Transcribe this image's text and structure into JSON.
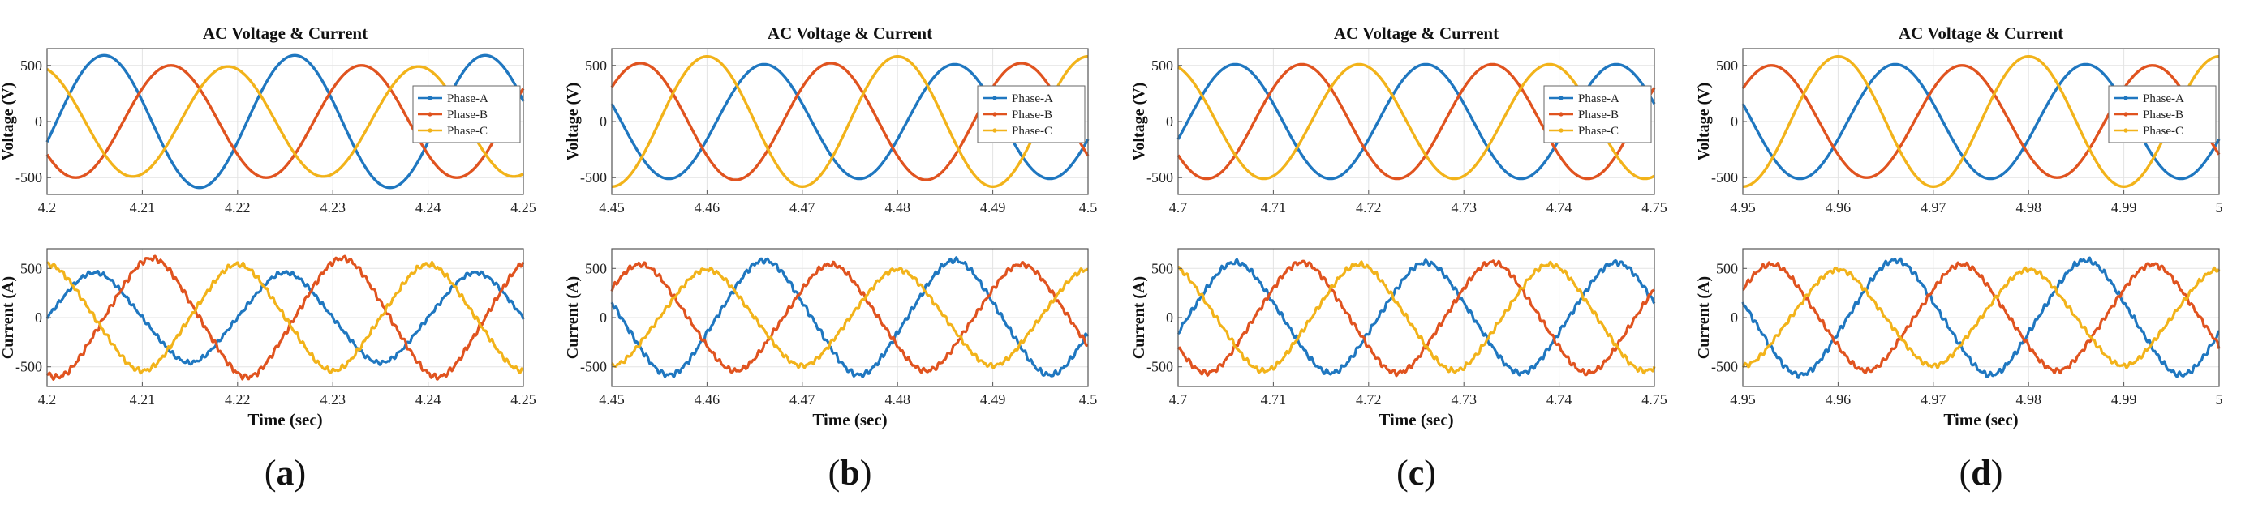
{
  "figure": {
    "subfigure_labels": [
      "a",
      "b",
      "c",
      "d"
    ]
  },
  "colors": {
    "phase_a": "#1f77c0",
    "phase_b": "#e0531f",
    "phase_c": "#f2b31a",
    "grid": "#e3e3e3",
    "axis": "#555555"
  },
  "chart_data": [
    {
      "type": "line",
      "title": "AC Voltage & Current",
      "ylabel": "Voltage (V)",
      "xlabel": "",
      "xlim": [
        4.2,
        4.25
      ],
      "ylim": [
        -650,
        650
      ],
      "xticks": [
        "4.2",
        "4.21",
        "4.22",
        "4.23",
        "4.24",
        "4.25"
      ],
      "yticks": [
        "500",
        "0",
        "-500"
      ],
      "series": [
        {
          "name": "Phase-A",
          "amplitude": 590,
          "peak_at": [
            4.206,
            4.226,
            4.246
          ],
          "trough_at": [
            4.216,
            4.236
          ]
        },
        {
          "name": "Phase-B",
          "amplitude": 500,
          "peak_at": [
            4.213,
            4.233
          ],
          "trough_at": [
            4.203,
            4.223,
            4.243
          ]
        },
        {
          "name": "Phase-C",
          "amplitude": 490,
          "peak_at": [
            4.219,
            4.239
          ],
          "trough_at": [
            4.209,
            4.229,
            4.249
          ]
        }
      ],
      "legend": [
        "Phase-A",
        "Phase-B",
        "Phase-C"
      ],
      "legend_position": "right"
    },
    {
      "type": "line",
      "title": "AC Voltage & Current",
      "ylabel": "Voltage (V)",
      "xlabel": "",
      "xlim": [
        4.45,
        4.5
      ],
      "ylim": [
        -650,
        650
      ],
      "xticks": [
        "4.45",
        "4.46",
        "4.47",
        "4.48",
        "4.49",
        "4.5"
      ],
      "yticks": [
        "500",
        "0",
        "-500"
      ],
      "series": [
        {
          "name": "Phase-A",
          "amplitude": 510,
          "peak_at": [
            4.466,
            4.486
          ],
          "trough_at": [
            4.456,
            4.476,
            4.496
          ]
        },
        {
          "name": "Phase-B",
          "amplitude": 520,
          "peak_at": [
            4.453,
            4.473,
            4.493
          ],
          "trough_at": [
            4.463,
            4.483
          ]
        },
        {
          "name": "Phase-C",
          "amplitude": 580,
          "peak_at": [
            4.46,
            4.48,
            4.5
          ],
          "trough_at": [
            4.45,
            4.47,
            4.49
          ]
        }
      ],
      "legend": [
        "Phase-A",
        "Phase-B",
        "Phase-C"
      ],
      "legend_position": "right"
    },
    {
      "type": "line",
      "title": "AC Voltage & Current",
      "ylabel": "Voltage (V)",
      "xlabel": "",
      "xlim": [
        4.7,
        4.75
      ],
      "ylim": [
        -650,
        650
      ],
      "xticks": [
        "4.7",
        "4.71",
        "4.72",
        "4.73",
        "4.74",
        "4.75"
      ],
      "yticks": [
        "500",
        "0",
        "-500"
      ],
      "series": [
        {
          "name": "Phase-A",
          "amplitude": 510,
          "peak_at": [
            4.706,
            4.726,
            4.746
          ],
          "trough_at": [
            4.716,
            4.736
          ]
        },
        {
          "name": "Phase-B",
          "amplitude": 510,
          "peak_at": [
            4.713,
            4.733
          ],
          "trough_at": [
            4.703,
            4.723,
            4.743
          ]
        },
        {
          "name": "Phase-C",
          "amplitude": 510,
          "peak_at": [
            4.719,
            4.739
          ],
          "trough_at": [
            4.709,
            4.729,
            4.749
          ]
        }
      ],
      "legend": [
        "Phase-A",
        "Phase-B",
        "Phase-C"
      ],
      "legend_position": "right"
    },
    {
      "type": "line",
      "title": "AC Voltage & Current",
      "ylabel": "Voltage (V)",
      "xlabel": "",
      "xlim": [
        4.95,
        5.0
      ],
      "ylim": [
        -650,
        650
      ],
      "xticks": [
        "4.95",
        "4.96",
        "4.97",
        "4.98",
        "4.99",
        "5"
      ],
      "yticks": [
        "500",
        "0",
        "-500"
      ],
      "series": [
        {
          "name": "Phase-A",
          "amplitude": 510,
          "peak_at": [
            4.966,
            4.986
          ],
          "trough_at": [
            4.956,
            4.976,
            4.996
          ]
        },
        {
          "name": "Phase-B",
          "amplitude": 500,
          "peak_at": [
            4.953,
            4.973,
            4.993
          ],
          "trough_at": [
            4.963,
            4.983
          ]
        },
        {
          "name": "Phase-C",
          "amplitude": 580,
          "peak_at": [
            4.96,
            4.98,
            5.0
          ],
          "trough_at": [
            4.95,
            4.97,
            4.99
          ]
        }
      ],
      "legend": [
        "Phase-A",
        "Phase-B",
        "Phase-C"
      ],
      "legend_position": "right"
    },
    {
      "type": "line",
      "title": "",
      "ylabel": "Current (A)",
      "xlabel": "Time (sec)",
      "xlim": [
        4.2,
        4.25
      ],
      "ylim": [
        -700,
        700
      ],
      "xticks": [
        "4.2",
        "4.21",
        "4.22",
        "4.23",
        "4.24",
        "4.25"
      ],
      "yticks": [
        "500",
        "0",
        "-500"
      ],
      "series": [
        {
          "name": "Phase-A",
          "amplitude": 440,
          "peak_at": [
            4.205,
            4.225,
            4.245
          ],
          "trough_at": [
            4.215,
            4.235
          ]
        },
        {
          "name": "Phase-B",
          "amplitude": 580,
          "peak_at": [
            4.211,
            4.231
          ],
          "trough_at": [
            4.202,
            4.221,
            4.241
          ]
        },
        {
          "name": "Phase-C",
          "amplitude": 520,
          "peak_at": [
            4.22,
            4.24
          ],
          "trough_at": [
            4.21,
            4.23,
            4.25
          ]
        }
      ]
    },
    {
      "type": "line",
      "title": "",
      "ylabel": "Current (A)",
      "xlabel": "Time (sec)",
      "xlim": [
        4.45,
        4.5
      ],
      "ylim": [
        -700,
        700
      ],
      "xticks": [
        "4.45",
        "4.46",
        "4.47",
        "4.48",
        "4.49",
        "4.5"
      ],
      "yticks": [
        "500",
        "0",
        "-500"
      ],
      "series": [
        {
          "name": "Phase-A",
          "amplitude": 560,
          "peak_at": [
            4.466,
            4.486
          ],
          "trough_at": [
            4.456,
            4.476,
            4.496
          ]
        },
        {
          "name": "Phase-B",
          "amplitude": 520,
          "peak_at": [
            4.453,
            4.473,
            4.493
          ],
          "trough_at": [
            4.463,
            4.483
          ]
        },
        {
          "name": "Phase-C",
          "amplitude": 470,
          "peak_at": [
            4.46,
            4.48,
            4.5
          ],
          "trough_at": [
            4.45,
            4.47,
            4.49
          ]
        }
      ]
    },
    {
      "type": "line",
      "title": "",
      "ylabel": "Current (A)",
      "xlabel": "Time (sec)",
      "xlim": [
        4.7,
        4.75
      ],
      "ylim": [
        -700,
        700
      ],
      "xticks": [
        "4.7",
        "4.71",
        "4.72",
        "4.73",
        "4.74",
        "4.75"
      ],
      "yticks": [
        "500",
        "0",
        "-500"
      ],
      "series": [
        {
          "name": "Phase-A",
          "amplitude": 540,
          "peak_at": [
            4.706,
            4.726,
            4.746
          ],
          "trough_at": [
            4.716,
            4.736
          ]
        },
        {
          "name": "Phase-B",
          "amplitude": 540,
          "peak_at": [
            4.713,
            4.733
          ],
          "trough_at": [
            4.703,
            4.723,
            4.743
          ]
        },
        {
          "name": "Phase-C",
          "amplitude": 520,
          "peak_at": [
            4.719,
            4.739
          ],
          "trough_at": [
            4.709,
            4.729,
            4.749
          ]
        }
      ]
    },
    {
      "type": "line",
      "title": "",
      "ylabel": "Current (A)",
      "xlabel": "Time (sec)",
      "xlim": [
        4.95,
        5.0
      ],
      "ylim": [
        -700,
        700
      ],
      "xticks": [
        "4.95",
        "4.96",
        "4.97",
        "4.98",
        "4.99",
        "5"
      ],
      "yticks": [
        "500",
        "0",
        "-500"
      ],
      "series": [
        {
          "name": "Phase-A",
          "amplitude": 560,
          "peak_at": [
            4.966,
            4.986
          ],
          "trough_at": [
            4.956,
            4.976,
            4.996
          ]
        },
        {
          "name": "Phase-B",
          "amplitude": 520,
          "peak_at": [
            4.953,
            4.973,
            4.993
          ],
          "trough_at": [
            4.963,
            4.983
          ]
        },
        {
          "name": "Phase-C",
          "amplitude": 470,
          "peak_at": [
            4.96,
            4.98,
            5.0
          ],
          "trough_at": [
            4.95,
            4.97,
            4.99
          ]
        }
      ]
    }
  ]
}
